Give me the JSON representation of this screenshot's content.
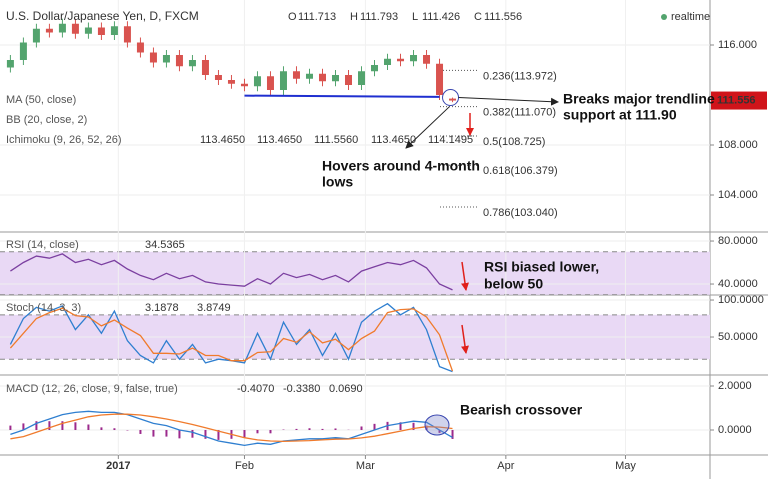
{
  "chart_data": [
    {
      "type": "candlestick",
      "title": "U.S. Dollar/Japanese Yen, D, FXCM",
      "status": "realtime",
      "ohlc_names": [
        "O",
        "H",
        "L",
        "C"
      ],
      "open": [
        114.2,
        114.8,
        116.2,
        117.3,
        117.0,
        117.7,
        116.9,
        117.4,
        116.8,
        117.5,
        116.2,
        115.4,
        114.6,
        115.2,
        114.3,
        114.8,
        113.6,
        113.2,
        112.9,
        112.7,
        113.5,
        112.4,
        113.9,
        113.3,
        113.7,
        113.1,
        113.6,
        112.8,
        113.9,
        114.4,
        114.9,
        114.7,
        115.2,
        114.5,
        111.713
      ],
      "high": [
        115.2,
        116.6,
        117.7,
        117.7,
        118.1,
        118.1,
        117.8,
        117.8,
        117.9,
        117.9,
        116.6,
        115.8,
        115.6,
        115.6,
        115.2,
        115.2,
        114.0,
        113.6,
        113.3,
        113.9,
        113.9,
        114.3,
        114.3,
        114.1,
        114.1,
        114.0,
        114.0,
        114.3,
        114.8,
        115.3,
        115.3,
        115.6,
        115.6,
        114.9,
        111.793
      ],
      "low": [
        113.8,
        114.4,
        115.8,
        116.6,
        116.6,
        116.5,
        116.5,
        116.4,
        116.4,
        115.8,
        115.0,
        114.2,
        114.2,
        113.9,
        113.9,
        113.2,
        112.8,
        112.5,
        112.3,
        112.3,
        112.0,
        112.0,
        112.9,
        112.9,
        112.7,
        112.7,
        112.4,
        112.4,
        113.5,
        114.0,
        114.3,
        114.3,
        114.1,
        111.6,
        111.426
      ],
      "close": [
        114.8,
        116.2,
        117.3,
        117.0,
        117.7,
        116.9,
        117.4,
        116.8,
        117.5,
        116.2,
        115.4,
        114.6,
        115.2,
        114.3,
        114.8,
        113.6,
        113.2,
        112.9,
        112.7,
        113.5,
        112.4,
        113.9,
        113.3,
        113.7,
        113.1,
        113.6,
        112.8,
        113.9,
        114.4,
        114.9,
        114.7,
        115.2,
        114.5,
        112.0,
        111.556
      ],
      "up_color": "#53a46e",
      "down_color": "#d9534f",
      "xlim": [
        -0.8,
        53.8
      ],
      "ylim": [
        101.04,
        119.6
      ],
      "yticks": [
        {
          "value": 104,
          "label": "104.000"
        },
        {
          "value": 108,
          "label": "108.000"
        },
        {
          "value": 116,
          "label": "116.000"
        }
      ],
      "indicators": [
        "MA (50, close)",
        "BB (20, close, 2)"
      ],
      "ichimoku": {
        "label": "Ichimoku (9, 26, 52, 26)",
        "readout": [
          "113.4650",
          "113.4650",
          "111.5560",
          "113.4650",
          "114.1495"
        ]
      },
      "trendline": {
        "x": [
          18,
          33
        ],
        "values": [
          111.95,
          111.85
        ],
        "color": "#1f2fd0"
      },
      "fib_levels": [
        {
          "value": 113.972,
          "label": "0.236(113.972)"
        },
        {
          "value": 111.07,
          "label": "0.382(111.070)"
        },
        {
          "value": 108.725,
          "label": "0.5(108.725)"
        },
        {
          "value": 106.379,
          "label": "0.618(106.379)"
        },
        {
          "value": 103.04,
          "label": "0.786(103.040)"
        }
      ],
      "annotations": [
        {
          "lines": [
            "Breaks major trendline",
            "support at 111.90"
          ]
        },
        {
          "lines": [
            "Hovers around 4-month",
            "lows"
          ]
        }
      ]
    },
    {
      "type": "line",
      "title": "RSI (14, close)",
      "color": "#7b3fa0",
      "values": [
        52,
        60,
        66,
        64,
        68,
        60,
        63,
        58,
        62,
        54,
        48,
        44,
        50,
        45,
        48,
        42,
        40,
        39,
        38,
        45,
        40,
        50,
        46,
        49,
        44,
        48,
        42,
        52,
        56,
        60,
        58,
        62,
        55,
        40,
        34.5365
      ],
      "ylim": [
        29.8,
        88.4
      ],
      "yticks": [
        {
          "value": 80,
          "label": "80.0000"
        },
        {
          "value": 40,
          "label": "40.0000"
        }
      ],
      "band": [
        30,
        70
      ],
      "annotations": [
        {
          "lines": [
            "RSI biased lower,",
            "below 50"
          ]
        }
      ]
    },
    {
      "type": "line",
      "title": "Stoch (14, 3, 3)",
      "series": [
        {
          "color": "#2f7fd0",
          "values": [
            40,
            75,
            90,
            85,
            92,
            60,
            80,
            55,
            85,
            45,
            25,
            15,
            45,
            20,
            40,
            15,
            20,
            18,
            15,
            55,
            20,
            70,
            40,
            60,
            25,
            55,
            20,
            70,
            85,
            95,
            80,
            90,
            60,
            10,
            3.1878
          ]
        },
        {
          "color": "#f07b2c",
          "values": [
            35,
            55,
            75,
            83,
            89,
            79,
            77,
            65,
            73,
            62,
            52,
            28,
            28,
            27,
            35,
            25,
            25,
            18,
            18,
            29,
            30,
            48,
            43,
            57,
            42,
            47,
            33,
            48,
            58,
            83,
            87,
            88,
            77,
            53,
            3.8749
          ]
        }
      ],
      "ylim": [
        -1.35,
        106.8
      ],
      "yticks": [
        {
          "value": 100,
          "label": "100.0000"
        },
        {
          "value": 50,
          "label": "50.0000"
        }
      ],
      "band": [
        20,
        80
      ]
    },
    {
      "type": "macd",
      "title": "MACD (12, 26, close, 9, false, true)",
      "readout": [
        "-0.4070",
        "-0.3380",
        "0.0690"
      ],
      "histogram": {
        "color": "#9c2a8c",
        "values": [
          0.2,
          0.3,
          0.4,
          0.4,
          0.4,
          0.35,
          0.25,
          0.12,
          0.08,
          -0.02,
          -0.18,
          -0.3,
          -0.3,
          -0.38,
          -0.35,
          -0.4,
          -0.45,
          -0.4,
          -0.35,
          -0.15,
          -0.15,
          0.02,
          0.05,
          0.08,
          0.05,
          0.07,
          0.01,
          0.16,
          0.28,
          0.37,
          0.35,
          0.33,
          0.2,
          -0.13,
          -0.407
        ]
      },
      "series": [
        {
          "color": "#2f7fd0",
          "values": [
            -0.2,
            0.0,
            0.3,
            0.5,
            0.7,
            0.8,
            0.85,
            0.8,
            0.8,
            0.7,
            0.5,
            0.3,
            0.2,
            0.0,
            -0.1,
            -0.3,
            -0.5,
            -0.6,
            -0.7,
            -0.6,
            -0.65,
            -0.5,
            -0.45,
            -0.4,
            -0.4,
            -0.35,
            -0.4,
            -0.2,
            0.0,
            0.2,
            0.3,
            0.4,
            0.35,
            0.0,
            -0.338
          ]
        },
        {
          "color": "#f07b2c",
          "values": [
            -0.4,
            -0.3,
            -0.1,
            0.1,
            0.3,
            0.45,
            0.6,
            0.68,
            0.72,
            0.72,
            0.68,
            0.6,
            0.5,
            0.38,
            0.25,
            0.1,
            -0.05,
            -0.2,
            -0.35,
            -0.45,
            -0.5,
            -0.52,
            -0.5,
            -0.48,
            -0.45,
            -0.42,
            -0.41,
            -0.36,
            -0.28,
            -0.17,
            -0.05,
            0.07,
            0.15,
            0.13,
            0.069
          ]
        }
      ],
      "ylim": [
        -1.136,
        2.5
      ],
      "yticks": [
        {
          "value": 2,
          "label": "2.0000"
        },
        {
          "value": 0,
          "label": "0.0000"
        }
      ],
      "xticks": [
        {
          "value": 8.3,
          "label": "2017"
        },
        {
          "value": 18,
          "label": "Feb"
        },
        {
          "value": 27.3,
          "label": "Mar"
        },
        {
          "value": 38.1,
          "label": "Apr"
        },
        {
          "value": 47.3,
          "label": "May"
        }
      ],
      "annotations": [
        {
          "lines": [
            "Bearish crossover"
          ]
        }
      ]
    }
  ]
}
